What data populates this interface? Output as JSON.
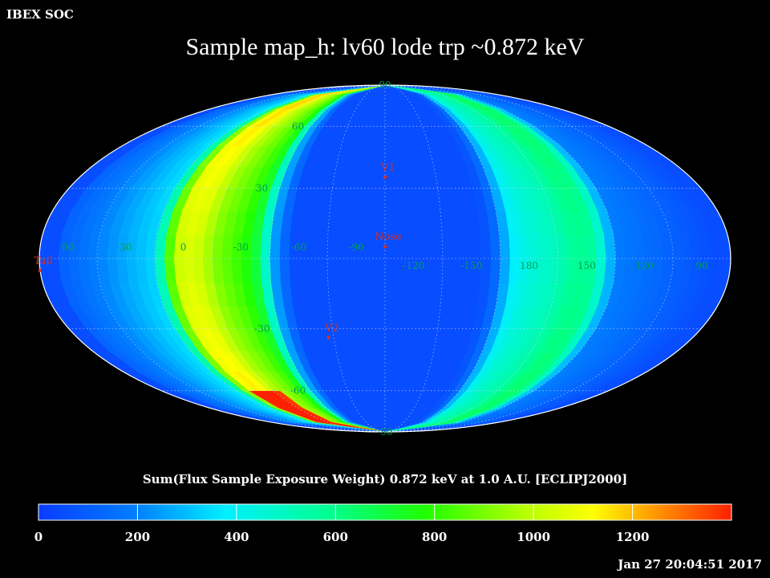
{
  "header": {
    "corner_label": "IBEX SOC",
    "timestamp": "Jan 27 20:04:51 2017"
  },
  "colors": {
    "background": "#000000",
    "grid_label": "#00a050",
    "marker": "#c83232",
    "outline": "#ffffff"
  },
  "chart_data": {
    "type": "heatmap",
    "projection": "mollweide",
    "coordinate_frame": "ECLIPJ2000",
    "title": "Sample map_h: lv60 lode trp ~0.872 keV",
    "colorbar_label": "Sum(Flux Sample Exposure Weight)  0.872 keV at 1.0 A.U. [ECLIPJ2000]",
    "colorbar_range": [
      0,
      1400
    ],
    "colorbar_ticks": [
      "0",
      "200",
      "400",
      "600",
      "800",
      "1000",
      "1200"
    ],
    "longitude_labels": [
      {
        "text": "60",
        "lon": 60
      },
      {
        "text": "30",
        "lon": 30
      },
      {
        "text": "0",
        "lon": 0
      },
      {
        "text": "-30",
        "lon": -30
      },
      {
        "text": "-60",
        "lon": -60
      },
      {
        "text": "-90",
        "lon": -90
      },
      {
        "text": "-120",
        "lon": -120
      },
      {
        "text": "-150",
        "lon": -150
      },
      {
        "text": "180",
        "lon": 180
      },
      {
        "text": "150",
        "lon": 150
      },
      {
        "text": "120",
        "lon": 120
      },
      {
        "text": "90",
        "lon": 90
      }
    ],
    "latitude_labels": [
      {
        "text": "90",
        "lat": 90
      },
      {
        "text": "60",
        "lat": 60
      },
      {
        "text": "30",
        "lat": 30
      },
      {
        "text": "-30",
        "lat": -30
      },
      {
        "text": "-60",
        "lat": -60
      },
      {
        "text": "-90",
        "lat": -90
      }
    ],
    "markers": [
      {
        "name": "V1",
        "lon": -105,
        "lat": 35
      },
      {
        "name": "Nose",
        "lon": -105,
        "lat": 5
      },
      {
        "name": "V2",
        "lon": -72,
        "lat": -34
      },
      {
        "name": "Tail",
        "lon": 75,
        "lat": -5
      }
    ],
    "exposure_band_profile": [
      {
        "offset_from_center_deg": 0,
        "value": 50
      },
      {
        "offset_from_center_deg": 50,
        "value": 60
      },
      {
        "offset_from_center_deg": 58,
        "value": 220
      },
      {
        "offset_from_center_deg": 62,
        "value": 400
      },
      {
        "offset_from_center_deg": 66,
        "value": 600
      },
      {
        "offset_from_center_deg": 74,
        "value": 700
      },
      {
        "offset_from_center_deg": 88,
        "value": 800
      },
      {
        "offset_from_center_deg": 100,
        "value": 940
      },
      {
        "offset_from_center_deg": 110,
        "value": 900
      },
      {
        "offset_from_center_deg": 120,
        "value": 300
      },
      {
        "offset_from_center_deg": 180,
        "value": 50
      }
    ]
  }
}
